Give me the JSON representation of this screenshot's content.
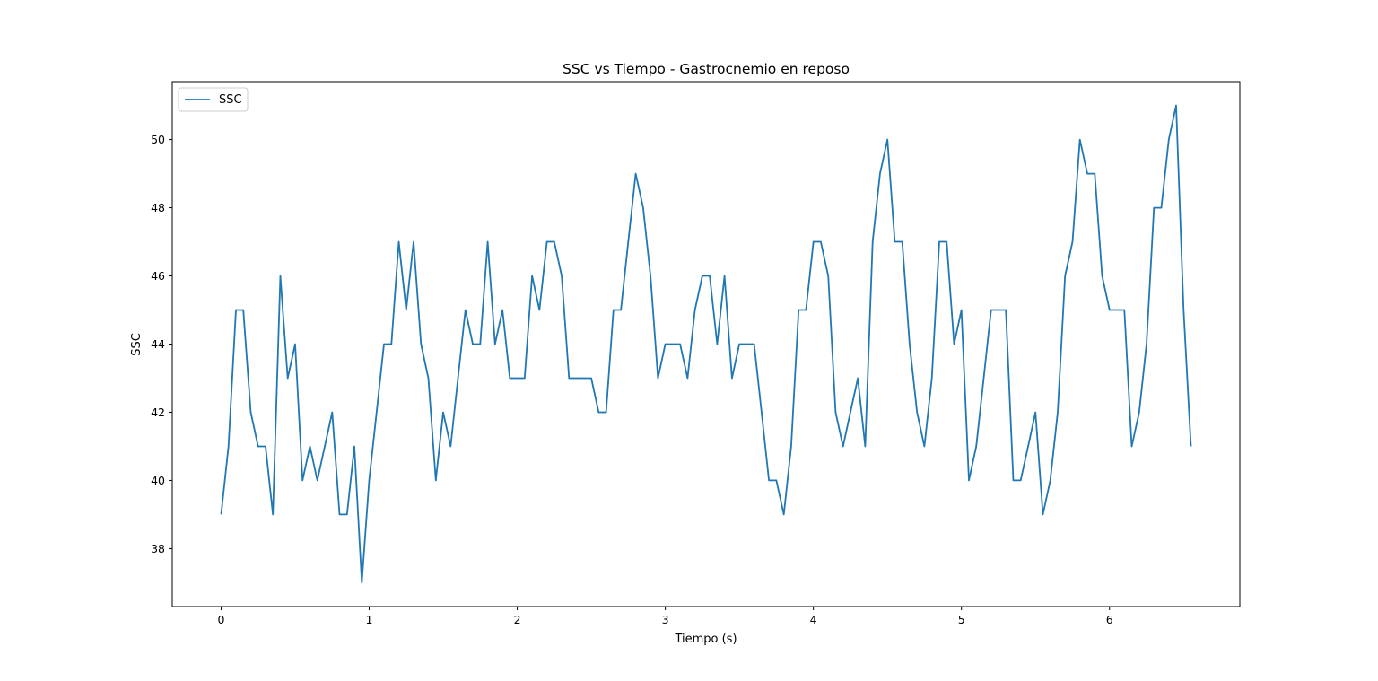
{
  "chart_data": {
    "type": "line",
    "title": "SSC vs Tiempo - Gastrocnemio en reposo",
    "xlabel": "Tiempo (s)",
    "ylabel": "SSC",
    "xlim": [
      -0.33,
      6.88
    ],
    "ylim": [
      36.3,
      51.7
    ],
    "xticks": [
      0,
      1,
      2,
      3,
      4,
      5,
      6
    ],
    "yticks": [
      38,
      40,
      42,
      44,
      46,
      48,
      50
    ],
    "grid": false,
    "legend": "top-left",
    "line_color": "#1f77b4",
    "series": [
      {
        "name": "SSC",
        "x": [
          0.0,
          0.05,
          0.1,
          0.15,
          0.2,
          0.25,
          0.3,
          0.35,
          0.4,
          0.45,
          0.5,
          0.55,
          0.6,
          0.65,
          0.7,
          0.75,
          0.8,
          0.85,
          0.9,
          0.95,
          1.0,
          1.05,
          1.1,
          1.15,
          1.2,
          1.25,
          1.3,
          1.35,
          1.4,
          1.45,
          1.5,
          1.55,
          1.6,
          1.65,
          1.7,
          1.75,
          1.8,
          1.85,
          1.9,
          1.95,
          2.0,
          2.05,
          2.1,
          2.15,
          2.2,
          2.25,
          2.3,
          2.35,
          2.4,
          2.45,
          2.5,
          2.55,
          2.6,
          2.65,
          2.7,
          2.75,
          2.8,
          2.85,
          2.9,
          2.95,
          3.0,
          3.05,
          3.1,
          3.15,
          3.2,
          3.25,
          3.3,
          3.35,
          3.4,
          3.45,
          3.5,
          3.55,
          3.6,
          3.65,
          3.7,
          3.75,
          3.8,
          3.85,
          3.9,
          3.95,
          4.0,
          4.05,
          4.1,
          4.15,
          4.2,
          4.25,
          4.3,
          4.35,
          4.4,
          4.45,
          4.5,
          4.55,
          4.6,
          4.65,
          4.7,
          4.75,
          4.8,
          4.85,
          4.9,
          4.95,
          5.0,
          5.05,
          5.1,
          5.15,
          5.2,
          5.25,
          5.3,
          5.35,
          5.4,
          5.45,
          5.5,
          5.55,
          5.6,
          5.65,
          5.7,
          5.75,
          5.8,
          5.85,
          5.9,
          5.95,
          6.0,
          6.05,
          6.1,
          6.15,
          6.2,
          6.25,
          6.3,
          6.35,
          6.4,
          6.45,
          6.5,
          6.55
        ],
        "values": [
          39,
          41,
          45,
          45,
          42,
          41,
          41,
          39,
          46,
          43,
          44,
          40,
          41,
          40,
          41,
          42,
          39,
          39,
          41,
          37,
          40,
          42,
          44,
          44,
          47,
          45,
          47,
          44,
          43,
          40,
          42,
          41,
          43,
          45,
          44,
          44,
          47,
          44,
          45,
          43,
          43,
          43,
          46,
          45,
          47,
          47,
          46,
          43,
          43,
          43,
          43,
          42,
          42,
          45,
          45,
          47,
          49,
          48,
          46,
          43,
          44,
          44,
          44,
          43,
          45,
          46,
          46,
          44,
          46,
          43,
          44,
          44,
          44,
          42,
          40,
          40,
          39,
          41,
          45,
          45,
          47,
          47,
          46,
          42,
          41,
          42,
          43,
          41,
          47,
          49,
          50,
          47,
          47,
          44,
          42,
          41,
          43,
          47,
          47,
          44,
          45,
          40,
          41,
          43,
          45,
          45,
          45,
          40,
          40,
          41,
          42,
          39,
          40,
          42,
          46,
          47,
          50,
          49,
          49,
          46,
          45,
          45,
          45,
          41,
          42,
          44,
          48,
          48,
          50,
          51,
          45,
          41
        ]
      }
    ]
  }
}
